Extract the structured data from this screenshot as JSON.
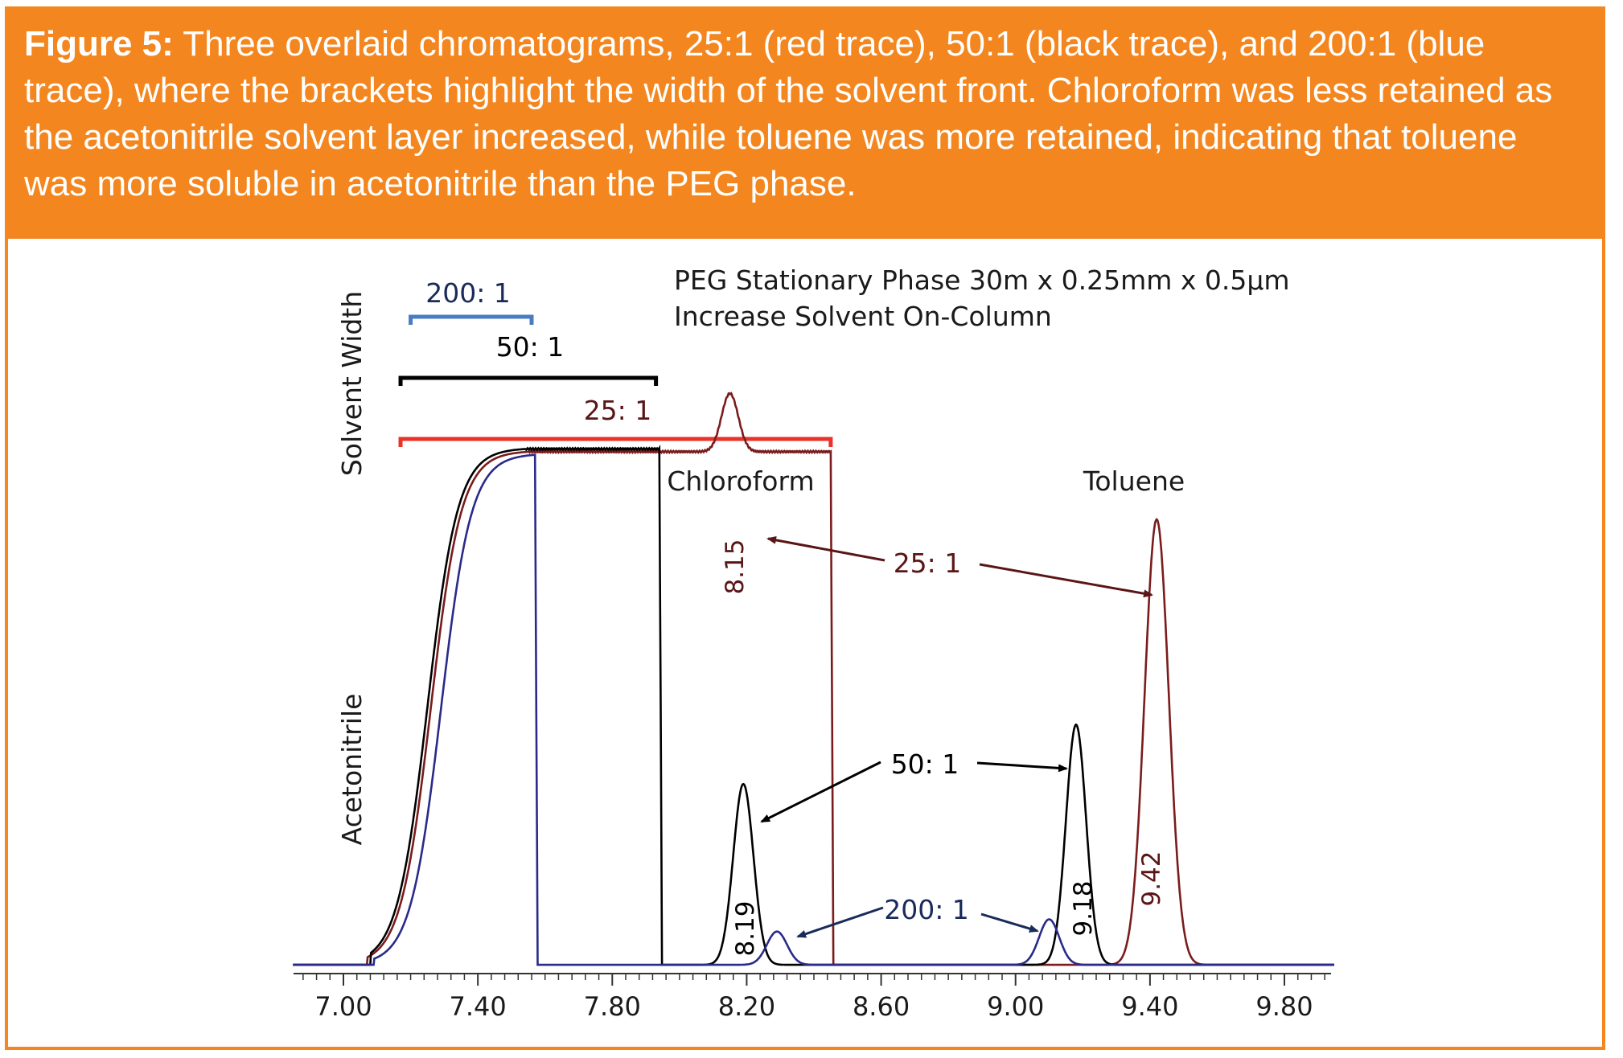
{
  "caption": {
    "label": "Figure 5:",
    "text": "Three overlaid chromatograms, 25:1 (red trace), 50:1 (black trace), and 200:1 (blue trace), where the brackets highlight the width of the solvent front. Chloroform was less retained as the acetonitrile solvent layer increased, while toluene was more retained, indicating that toluene was more soluble in acetonitrile than the PEG phase."
  },
  "chart_data": {
    "type": "line",
    "title": "PEG Stationary Phase 30m x 0.25mm x 0.5µm",
    "subtitle": "Increase Solvent On-Column",
    "xlabel": "",
    "ylabel_top": "Solvent Width",
    "ylabel_bottom": "Acetonitrile",
    "xlim": [
      6.85,
      9.95
    ],
    "ylim": [
      0,
      100
    ],
    "x_ticks": [
      7.0,
      7.4,
      7.8,
      8.2,
      8.6,
      9.0,
      9.4,
      9.8
    ],
    "x_tick_labels": [
      "7.00",
      "7.40",
      "7.80",
      "8.20",
      "8.60",
      "9.00",
      "9.40",
      "9.80"
    ],
    "grid": false,
    "colors": {
      "ratio_25_1": "#7a1c1c",
      "ratio_50_1": "#000000",
      "ratio_200_1": "#2a2a8a",
      "bracket_25_1": "#e8332a",
      "bracket_50_1": "#000000",
      "bracket_200_1": "#4a7cc0",
      "accent": "#f3861f"
    },
    "solvent_brackets": [
      {
        "name": "200: 1",
        "start": 7.2,
        "end": 7.56
      },
      {
        "name": "50: 1",
        "start": 7.17,
        "end": 7.93
      },
      {
        "name": "25: 1",
        "start": 7.17,
        "end": 8.45
      }
    ],
    "series": [
      {
        "name": "25: 1",
        "solvent_plateau": {
          "rise_start": 7.15,
          "rise_mid": 7.26,
          "plateau": 93.5,
          "drop": 8.45
        },
        "peaks": [
          {
            "compound": "Chloroform",
            "rt": 8.15,
            "label": "8.15",
            "height": 10.5,
            "sigma": 0.025
          },
          {
            "compound": "Toluene",
            "rt": 9.42,
            "label": "9.42",
            "height": 80.3,
            "sigma": 0.036
          }
        ]
      },
      {
        "name": "50: 1",
        "solvent_plateau": {
          "rise_start": 7.16,
          "rise_mid": 7.25,
          "plateau": 94.0,
          "drop": 7.94
        },
        "peaks": [
          {
            "compound": "Chloroform",
            "rt": 8.19,
            "label": "8.19",
            "height": 32.6,
            "sigma": 0.03
          },
          {
            "compound": "Toluene",
            "rt": 9.18,
            "label": "9.18",
            "height": 43.3,
            "sigma": 0.03
          }
        ]
      },
      {
        "name": "200: 1",
        "solvent_plateau": {
          "rise_start": 7.17,
          "rise_mid": 7.29,
          "plateau": 93.0,
          "drop": 7.57
        },
        "peaks": [
          {
            "compound": "Chloroform",
            "rt": 8.29,
            "label": "",
            "height": 6.0,
            "sigma": 0.03
          },
          {
            "compound": "Toluene",
            "rt": 9.1,
            "label": "",
            "height": 8.2,
            "sigma": 0.03
          }
        ]
      }
    ],
    "annotations": {
      "chloroform": "Chloroform",
      "toluene": "Toluene",
      "label_25": "25: 1",
      "label_50": "50: 1",
      "label_200": "200: 1"
    }
  }
}
